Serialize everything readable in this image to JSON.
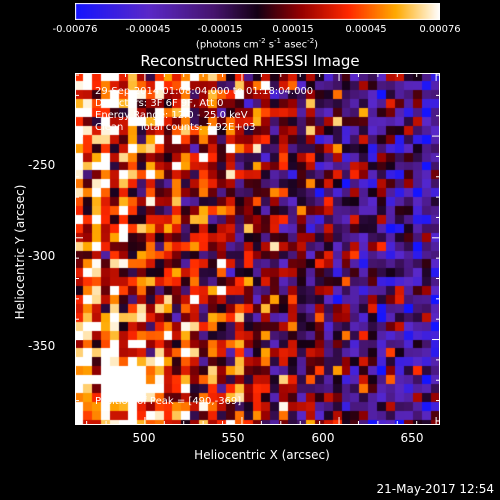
{
  "colorbar": {
    "ticks": [
      "-0.00076",
      "-0.00045",
      "-0.00015",
      "0.00015",
      "0.00045",
      "0.00076"
    ],
    "units_main": "(photons cm",
    "units_exp1": "-2",
    "units_s": " s",
    "units_exp2": "-1",
    "units_asec": " asec",
    "units_exp3": "-2",
    "units_close": ")"
  },
  "plot": {
    "title": "Reconstructed RHESSI Image",
    "time_range": "29-Sep-2014 01:08:04.000 to 01:18:04.000",
    "detectors": "Detectors: 3F 6F 9F, Att 0",
    "energy_range": "Energy Range: 12.0 - 25.0 keV",
    "clean_info": "Clean     Total counts: 7.92E+03",
    "peak_position": "Position of Peak = [490,-369]",
    "xlabel": "Heliocentric X (arcsec)",
    "ylabel": "Heliocentric Y (arcsec)",
    "xticks": [
      "500",
      "550",
      "600",
      "650"
    ],
    "yticks": [
      "-250",
      "-300",
      "-350"
    ]
  },
  "footer": {
    "timestamp": "21-May-2017 12:54"
  },
  "chart_data": {
    "type": "heatmap",
    "title": "Reconstructed RHESSI Image",
    "xlabel": "Heliocentric X (arcsec)",
    "ylabel": "Heliocentric Y (arcsec)",
    "xlim": [
      464,
      652
    ],
    "ylim": [
      -392,
      -219
    ],
    "colorscale_range": [
      -0.00076,
      0.00076
    ],
    "peak": [
      490,
      -369
    ],
    "grid": false
  }
}
